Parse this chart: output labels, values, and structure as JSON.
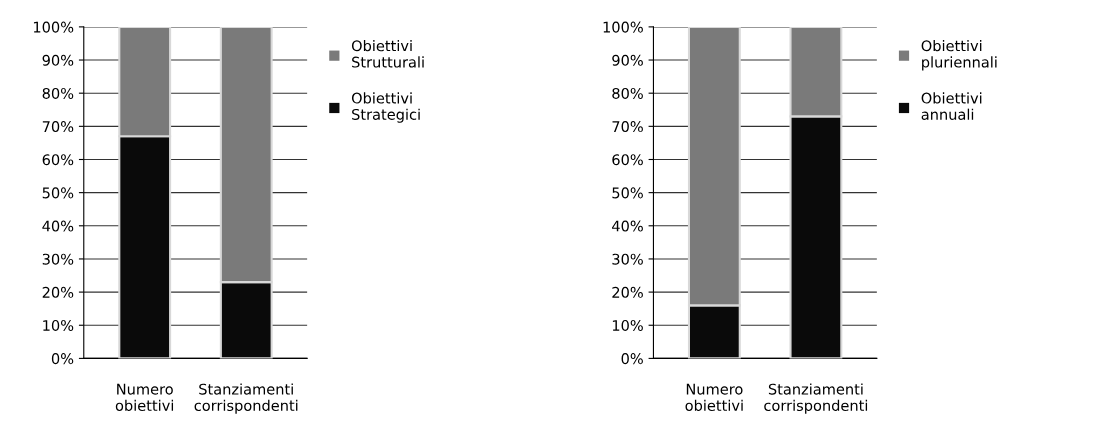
{
  "chart_data": [
    {
      "type": "bar",
      "stacked": true,
      "categories": [
        "Numero\nobiettivi",
        "Stanziamenti\ncorrispondenti"
      ],
      "series": [
        {
          "name": "Obiettivi\nStrategici",
          "color": "#0a0a0a",
          "values": [
            67,
            23
          ]
        },
        {
          "name": "Obiettivi\nStrutturali",
          "color": "#7a7a7a",
          "values": [
            33,
            77
          ]
        }
      ],
      "ylim": [
        0,
        100
      ],
      "yticks": [
        {
          "value": 0,
          "label": "0%"
        },
        {
          "value": 10,
          "label": "10%"
        },
        {
          "value": 20,
          "label": "20%"
        },
        {
          "value": 30,
          "label": "30%"
        },
        {
          "value": 40,
          "label": "40%"
        },
        {
          "value": 50,
          "label": "50%"
        },
        {
          "value": 60,
          "label": "60%"
        },
        {
          "value": 70,
          "label": "70%"
        },
        {
          "value": 80,
          "label": "80%"
        },
        {
          "value": 90,
          "label": "90%"
        },
        {
          "value": 100,
          "label": "100%"
        }
      ],
      "grid": "y",
      "legend": "right"
    },
    {
      "type": "bar",
      "stacked": true,
      "categories": [
        "Numero\nobiettivi",
        "Stanziamenti\ncorrispondenti"
      ],
      "series": [
        {
          "name": "Obiettivi\nannuali",
          "color": "#0a0a0a",
          "values": [
            16,
            73
          ]
        },
        {
          "name": "Obiettivi\npluriennali",
          "color": "#7a7a7a",
          "values": [
            84,
            27
          ]
        }
      ],
      "ylim": [
        0,
        100
      ],
      "yticks": [
        {
          "value": 0,
          "label": "0%"
        },
        {
          "value": 10,
          "label": "10%"
        },
        {
          "value": 20,
          "label": "20%"
        },
        {
          "value": 30,
          "label": "30%"
        },
        {
          "value": 40,
          "label": "40%"
        },
        {
          "value": 50,
          "label": "50%"
        },
        {
          "value": 60,
          "label": "60%"
        },
        {
          "value": 70,
          "label": "70%"
        },
        {
          "value": 80,
          "label": "80%"
        },
        {
          "value": 90,
          "label": "90%"
        },
        {
          "value": 100,
          "label": "100%"
        }
      ],
      "grid": "y",
      "legend": "right"
    }
  ]
}
